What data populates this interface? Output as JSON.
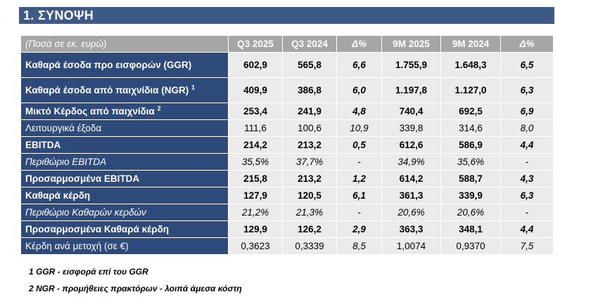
{
  "section_title": "1.  ΣΥΝΟΨΗ",
  "table": {
    "header": [
      "(Ποσά σε εκ. ευρώ)",
      "Q3 2025",
      "Q3 2024",
      "Δ%",
      "9M 2025",
      "9M 2024",
      "Δ%"
    ],
    "rows": [
      {
        "label": "Καθαρά έσοδα προ εισφορών (GGR)",
        "sup": "",
        "values": [
          "602,9",
          "565,8",
          "6,6",
          "1.755,9",
          "1.648,3",
          "6,5"
        ]
      },
      {
        "label": "Καθαρά έσοδα από παιχνίδια (NGR)",
        "sup": "1",
        "values": [
          "409,9",
          "386,8",
          "6,0",
          "1.197,8",
          "1.127,0",
          "6,3"
        ]
      },
      {
        "label": "Μικτό Κέρδος από παιχνίδια",
        "sup": "2",
        "values": [
          "253,4",
          "241,9",
          "4,8",
          "740,4",
          "692,5",
          "6,9"
        ]
      },
      {
        "label": "Λειτουργικά έξοδα",
        "sup": "",
        "values": [
          "111,6",
          "100,6",
          "10,9",
          "339,8",
          "314,6",
          "8,0"
        ]
      },
      {
        "label": "EBITDA",
        "sup": "",
        "values": [
          "214,2",
          "213,2",
          "0,5",
          "612,6",
          "586,9",
          "4,4"
        ]
      },
      {
        "label": "Περιθώριο EBITDA",
        "sup": "",
        "values": [
          "35,5%",
          "37,7%",
          "-",
          "34,9%",
          "35,6%",
          "-"
        ]
      },
      {
        "label": "Προσαρμοσμένα EBITDA",
        "sup": "",
        "values": [
          "215,8",
          "213,2",
          "1,2",
          "614,2",
          "588,7",
          "4,3"
        ]
      },
      {
        "label": "Καθαρά κέρδη",
        "sup": "",
        "values": [
          "127,9",
          "120,5",
          "6,1",
          "361,3",
          "339,9",
          "6,3"
        ]
      },
      {
        "label": "Περιθώριο Καθαρών κερδών",
        "sup": "",
        "values": [
          "21,2%",
          "21,3%",
          "-",
          "20,6%",
          "20,6%",
          "-"
        ]
      },
      {
        "label": "Προσαρμοσμένα Καθαρά κέρδη",
        "sup": "",
        "values": [
          "129,9",
          "126,2",
          "2,9",
          "363,3",
          "348,1",
          "4,4"
        ]
      },
      {
        "label": "Κέρδη ανά μετοχή (σε €)",
        "sup": "",
        "values": [
          "0,3623",
          "0,3339",
          "8,5",
          "1,0074",
          "0,9370",
          "7,5"
        ]
      }
    ]
  },
  "footnotes": [
    "1 GGR - εισφορά επί του GGR",
    "2 NGR - προμήθειες πρακτόρων - λοιπά άμεσα κόστη"
  ]
}
